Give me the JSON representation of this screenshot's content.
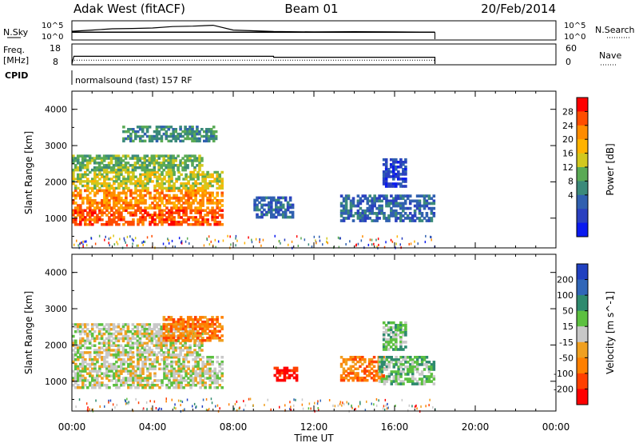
{
  "header": {
    "station": "Adak West (fitACF)",
    "beam": "Beam 01",
    "date": "20/Feb/2014"
  },
  "noise_panel": {
    "left_label": "N.Sky",
    "right_label": "N.Search",
    "ticks": [
      "10^5",
      "10^0"
    ],
    "right_ticks": [
      "10^5",
      "10^0"
    ]
  },
  "freq_panel": {
    "label_line1": "Freq.",
    "label_line2": "[MHz]",
    "ticks": [
      "18",
      "8"
    ],
    "right_ticks": [
      "60",
      "0"
    ],
    "right_label": "Nave"
  },
  "cpid_panel": {
    "label": "CPID",
    "text": "normalsound (fast) 157 RF"
  },
  "x_axis": {
    "label": "Time UT",
    "ticks": [
      "00:00",
      "04:00",
      "08:00",
      "12:00",
      "16:00",
      "20:00",
      "00:00"
    ]
  },
  "power_panel": {
    "ylabel": "Slant Range [km]",
    "yticks": [
      "1000",
      "2000",
      "3000",
      "4000"
    ],
    "colorbar_label": "Power [dB]",
    "colorbar_ticks": [
      "28",
      "24",
      "20",
      "16",
      "12",
      "8",
      "4"
    ],
    "colorbar_colors": [
      "#ff0000",
      "#ff4d00",
      "#ff8c00",
      "#ffb300",
      "#d2c81e",
      "#5aaa55",
      "#3b8a7a",
      "#3060b0",
      "#2a40c0",
      "#0a1af0"
    ]
  },
  "velocity_panel": {
    "ylabel": "Slant Range [km]",
    "yticks": [
      "1000",
      "2000",
      "3000",
      "4000"
    ],
    "colorbar_label": "Velocity [m s^-1]",
    "colorbar_ticks": [
      "200",
      "100",
      "50",
      "15",
      "-15",
      "-50",
      "-100",
      "-200"
    ],
    "colorbar_colors": [
      "#2040c0",
      "#3066b8",
      "#2e8a6e",
      "#5cc040",
      "#c8c8c8",
      "#f0a020",
      "#ff8000",
      "#ff4000",
      "#ff0000"
    ]
  },
  "chart_data": [
    {
      "type": "line",
      "title": "N.Sky / N.Search",
      "x_unit": "hours UT",
      "xlim": [
        0,
        24
      ],
      "y_scale": "log",
      "ylim": [
        1,
        100000
      ],
      "series": [
        {
          "name": "N.Sky",
          "x": [
            0,
            1,
            2,
            3,
            4,
            5,
            6,
            7,
            8,
            10,
            12,
            14,
            16,
            18
          ],
          "y": [
            180,
            400,
            900,
            1100,
            1500,
            4000,
            5000,
            9000,
            400,
            150,
            120,
            140,
            120,
            100
          ]
        },
        {
          "name": "N.Search",
          "x": [
            0,
            18
          ],
          "y": [
            100,
            100
          ]
        }
      ]
    },
    {
      "type": "line",
      "title": "Freq / Nave",
      "x_unit": "hours UT",
      "xlim": [
        0,
        24
      ],
      "series": [
        {
          "name": "Freq",
          "x": [
            0,
            0.1,
            10,
            10,
            18,
            18
          ],
          "y": [
            8,
            12,
            12,
            11.5,
            11.5,
            8
          ]
        },
        {
          "name": "Nave",
          "x": [
            0,
            18
          ],
          "y": [
            12,
            12
          ]
        }
      ]
    },
    {
      "type": "heatmap",
      "title": "Power [dB]",
      "x_unit": "hours UT",
      "y_unit": "km",
      "xlim": [
        0,
        24
      ],
      "ylim": [
        180,
        4500
      ],
      "clim": [
        0,
        30
      ],
      "regions": [
        {
          "t0": 0,
          "t1": 7.5,
          "r0": 800,
          "r1": 1250,
          "value": 28
        },
        {
          "t0": 0,
          "t1": 7.5,
          "r0": 1250,
          "r1": 1800,
          "value": 22
        },
        {
          "t0": 0,
          "t1": 7.5,
          "r0": 1800,
          "r1": 2300,
          "value": 18
        },
        {
          "t0": 0,
          "t1": 6.5,
          "r0": 2300,
          "r1": 2750,
          "value": 13
        },
        {
          "t0": 2.5,
          "t1": 7.2,
          "r0": 3100,
          "r1": 3550,
          "value": 9
        },
        {
          "t0": 9.0,
          "t1": 11.0,
          "r0": 1000,
          "r1": 1600,
          "value": 6
        },
        {
          "t0": 13.3,
          "t1": 18.0,
          "r0": 900,
          "r1": 1650,
          "value": 8
        },
        {
          "t0": 15.4,
          "t1": 16.6,
          "r0": 1850,
          "r1": 2650,
          "value": 5
        }
      ]
    },
    {
      "type": "heatmap",
      "title": "Velocity [m s^-1]",
      "x_unit": "hours UT",
      "y_unit": "km",
      "xlim": [
        0,
        24
      ],
      "ylim": [
        180,
        4500
      ],
      "clim": [
        -250,
        250
      ],
      "regions": [
        {
          "t0": 0,
          "t1": 7.5,
          "r0": 800,
          "r1": 1700,
          "value": 0
        },
        {
          "t0": 0,
          "t1": 6.5,
          "r0": 1700,
          "r1": 2600,
          "value": 0
        },
        {
          "t0": 4.5,
          "t1": 7.5,
          "r0": 2100,
          "r1": 2800,
          "value": -60
        },
        {
          "t0": 10.0,
          "t1": 11.2,
          "r0": 1000,
          "r1": 1400,
          "value": -200
        },
        {
          "t0": 13.3,
          "t1": 15.5,
          "r0": 1000,
          "r1": 1700,
          "value": -60
        },
        {
          "t0": 15.2,
          "t1": 18.0,
          "r0": 900,
          "r1": 1700,
          "value": 40
        },
        {
          "t0": 15.4,
          "t1": 16.6,
          "r0": 1850,
          "r1": 2650,
          "value": 40
        }
      ]
    }
  ]
}
